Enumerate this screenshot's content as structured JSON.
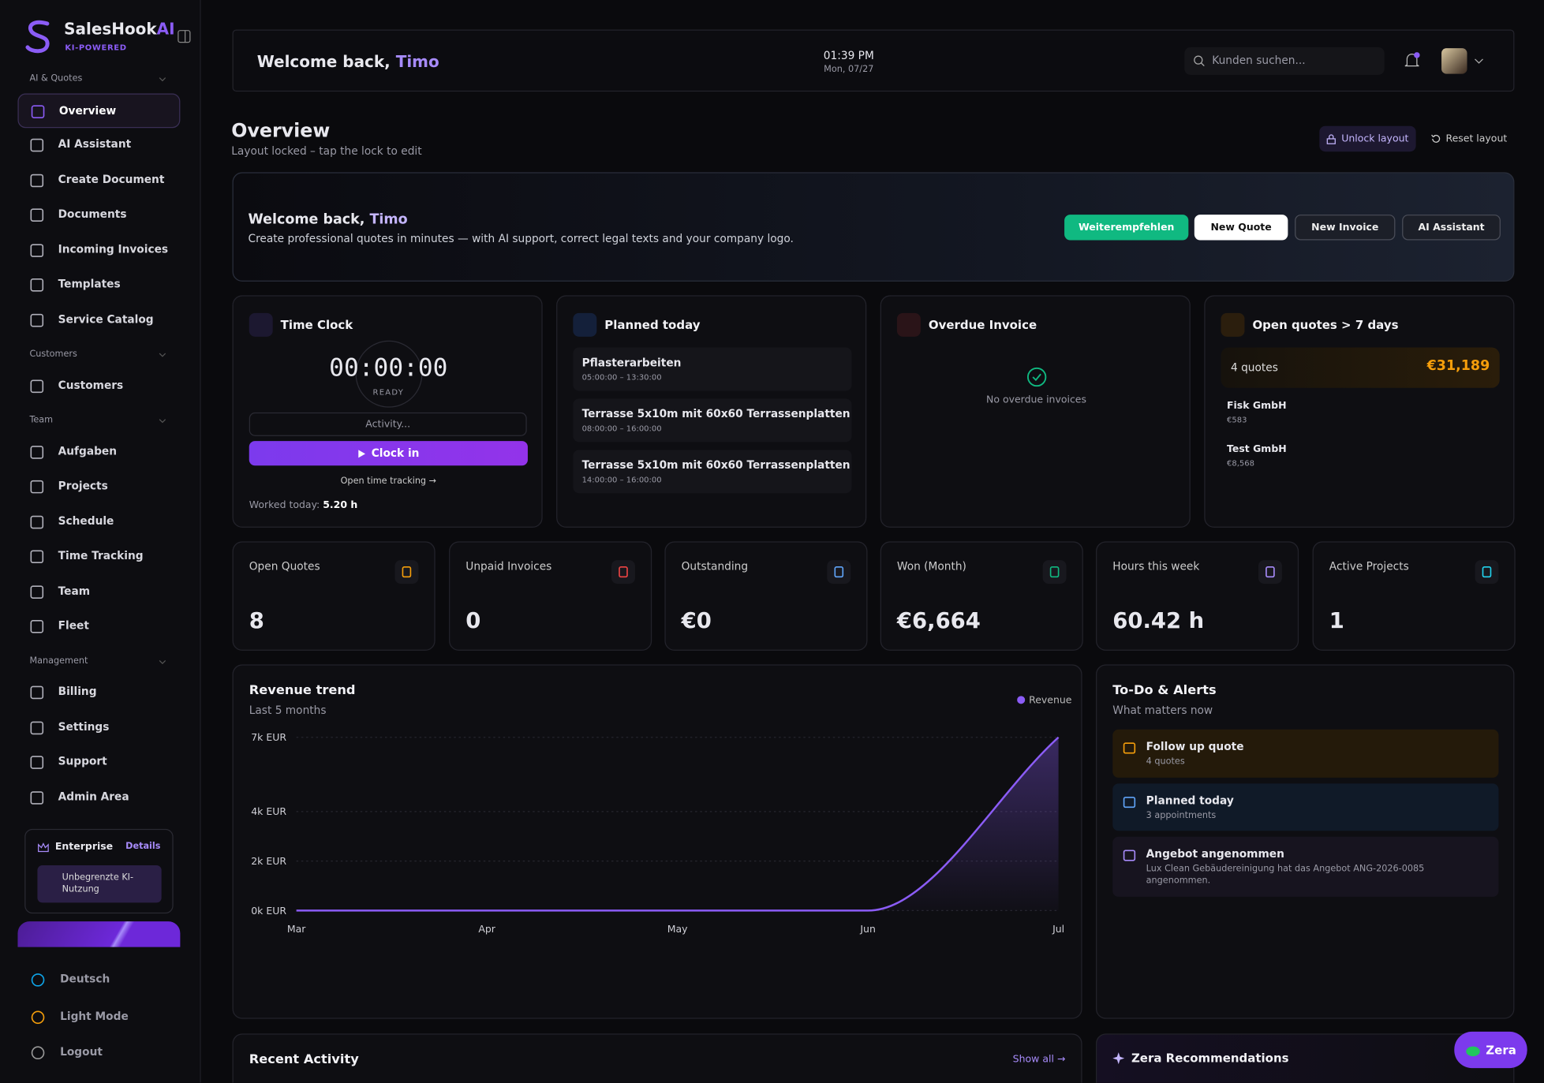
{
  "sidebar": {
    "brand": "SalesHook",
    "brand_accent": "AI",
    "tagline": "KI-POWERED",
    "sections": [
      {
        "title": "AI & Quotes",
        "items": [
          "Overview",
          "AI Assistant",
          "Create Document",
          "Documents",
          "Incoming Invoices",
          "Templates",
          "Service Catalog"
        ]
      },
      {
        "title": "Customers",
        "items": [
          "Customers"
        ]
      },
      {
        "title": "Team",
        "items": [
          "Aufgaben",
          "Projects",
          "Schedule",
          "Time Tracking",
          "Team",
          "Fleet"
        ]
      },
      {
        "title": "Management",
        "items": [
          "Billing",
          "Settings",
          "Support",
          "Admin Area"
        ]
      }
    ],
    "plan": {
      "name": "Enterprise",
      "link": "Details",
      "feature": "Unbegrenzte KI-Nutzung"
    },
    "footer": [
      "Deutsch",
      "Light Mode",
      "Logout"
    ]
  },
  "header": {
    "greeting": "Welcome back, ",
    "user": "Timo",
    "time": "01:39 PM",
    "date": "Mon, 07/27",
    "search": "Kunden suchen..."
  },
  "page": {
    "title": "Overview",
    "subtitle": "Layout locked – tap the lock to edit",
    "actions": [
      "Unlock layout",
      "Reset layout"
    ]
  },
  "banner": {
    "greeting": "Welcome back, ",
    "user": "Timo",
    "text": "Create professional quotes in minutes — with AI support, correct legal texts and your company logo.",
    "buttons": [
      "Weiterempfehlen",
      "New Quote",
      "New Invoice",
      "AI Assistant"
    ]
  },
  "time_clock": {
    "title": "Time Clock",
    "display": "00:00:00",
    "status": "READY",
    "placeholder": "Activity...",
    "button": "Clock in",
    "link": "Open time tracking →",
    "worked_label": "Worked today:",
    "worked_value": "5.20 h"
  },
  "planned": {
    "title": "Planned today",
    "items": [
      {
        "title": "Pflasterarbeiten",
        "time": "05:00:00 – 13:30:00"
      },
      {
        "title": "Terrasse 5x10m mit 60x60 Terrassenplatten",
        "time": "08:00:00 – 16:00:00"
      },
      {
        "title": "Terrasse 5x10m mit 60x60 Terrassenplatten",
        "time": "14:00:00 – 16:00:00"
      }
    ]
  },
  "overdue": {
    "title": "Overdue Invoice",
    "empty": "No overdue invoices"
  },
  "open_quotes": {
    "title": "Open quotes > 7 days",
    "count": "4 quotes",
    "total": "€31,189",
    "items": [
      {
        "name": "Fisk GmbH",
        "amount": "€583"
      },
      {
        "name": "Test GmbH",
        "amount": "€8,568"
      }
    ]
  },
  "stats": [
    {
      "label": "Open Quotes",
      "value": "8"
    },
    {
      "label": "Unpaid Invoices",
      "value": "0"
    },
    {
      "label": "Outstanding",
      "value": "€0"
    },
    {
      "label": "Won (Month)",
      "value": "€6,664"
    },
    {
      "label": "Hours this week",
      "value": "60.42 h"
    },
    {
      "label": "Active Projects",
      "value": "1"
    }
  ],
  "chart_data": {
    "type": "line",
    "title": "Revenue trend",
    "subtitle": "Last 5 months",
    "categories": [
      "Mar",
      "Apr",
      "May",
      "Jun",
      "Jul"
    ],
    "series": [
      {
        "name": "Revenue",
        "color": "#8b5cf6",
        "values": [
          0,
          0,
          0,
          0,
          7000
        ]
      }
    ],
    "ylim": [
      0,
      7000
    ],
    "yticks": [
      {
        "value": 0,
        "label": "0k EUR"
      },
      {
        "value": 2000,
        "label": "2k EUR"
      },
      {
        "value": 4000,
        "label": "4k EUR"
      },
      {
        "value": 7000,
        "label": "7k EUR"
      }
    ],
    "grid": true,
    "legend": "top-right"
  },
  "todo": {
    "title": "To-Do & Alerts",
    "subtitle": "What matters now",
    "items": [
      {
        "title": "Follow up quote",
        "detail": "4 quotes"
      },
      {
        "title": "Planned today",
        "detail": "3 appointments"
      },
      {
        "title": "Angebot angenommen",
        "detail": "Lux Clean Gebäudereinigung hat das Angebot ANG-2026-0085 angenommen."
      }
    ]
  },
  "recent": {
    "title": "Recent Activity",
    "link": "Show all →"
  },
  "zera": {
    "title": "Zera Recommendations",
    "button": "Zera"
  }
}
